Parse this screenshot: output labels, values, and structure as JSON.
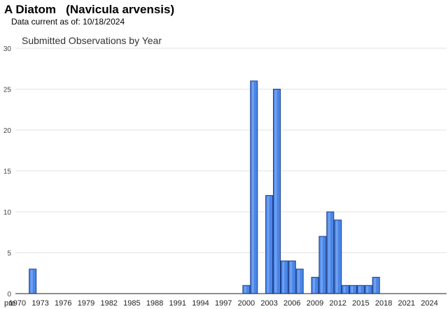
{
  "header": {
    "common_name": "A Diatom",
    "scientific_name": "(Navicula arvensis)",
    "date_label": "Data current as of:",
    "date_value": "10/18/2024"
  },
  "chart_data": {
    "type": "bar",
    "title": "Submitted Observations by Year",
    "xlabel": "",
    "ylabel": "",
    "ylim": [
      0,
      30
    ],
    "yticks": [
      0,
      5,
      10,
      15,
      20,
      25,
      30
    ],
    "grid": true,
    "bar_color": "#4a86e8",
    "categories": [
      "pre",
      "1970",
      "1971",
      "1972",
      "1973",
      "1974",
      "1975",
      "1976",
      "1977",
      "1978",
      "1979",
      "1980",
      "1981",
      "1982",
      "1983",
      "1984",
      "1985",
      "1986",
      "1987",
      "1988",
      "1989",
      "1990",
      "1991",
      "1992",
      "1993",
      "1994",
      "1995",
      "1996",
      "1997",
      "1998",
      "1999",
      "2000",
      "2001",
      "2002",
      "2003",
      "2004",
      "2005",
      "2006",
      "2007",
      "2008",
      "2009",
      "2010",
      "2011",
      "2012",
      "2013",
      "2014",
      "2015",
      "2016",
      "2017",
      "2018",
      "2019",
      "2020",
      "2021",
      "2022",
      "2023",
      "2024"
    ],
    "values": [
      0,
      0,
      0,
      3,
      0,
      0,
      0,
      0,
      0,
      0,
      0,
      0,
      0,
      0,
      0,
      0,
      0,
      0,
      0,
      0,
      0,
      0,
      0,
      0,
      0,
      0,
      0,
      0,
      0,
      0,
      0,
      1,
      26,
      0,
      12,
      25,
      4,
      4,
      3,
      0,
      2,
      7,
      10,
      9,
      1,
      1,
      1,
      1,
      2,
      0,
      0,
      0,
      0,
      0,
      0,
      0
    ],
    "xtick_labels": [
      "pre",
      "1970",
      "1973",
      "1976",
      "1979",
      "1982",
      "1985",
      "1988",
      "1991",
      "1994",
      "1997",
      "2000",
      "2003",
      "2006",
      "2009",
      "2012",
      "2015",
      "2018",
      "2021",
      "2024"
    ]
  }
}
